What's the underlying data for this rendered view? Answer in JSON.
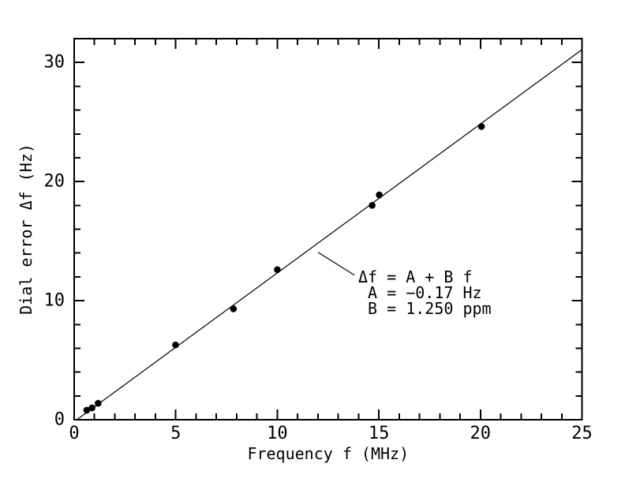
{
  "figure": {
    "background": "#ffffff",
    "foreground": "#000000"
  },
  "chart_data": {
    "type": "scatter",
    "title": "",
    "xlabel": "Frequency f (MHz)",
    "ylabel": "Dial error Δf (Hz)",
    "xlim": [
      0,
      25
    ],
    "ylim": [
      0,
      32
    ],
    "x_major_ticks": [
      0,
      5,
      10,
      15,
      20,
      25
    ],
    "x_minor_step": 1,
    "y_major_ticks": [
      0,
      10,
      20,
      30
    ],
    "y_minor_step": 2,
    "grid": false,
    "legend": null,
    "points": [
      [
        0.62,
        0.8
      ],
      [
        0.88,
        1.0
      ],
      [
        1.18,
        1.38
      ],
      [
        4.99,
        6.28
      ],
      [
        7.84,
        9.31
      ],
      [
        10.0,
        12.6
      ],
      [
        14.67,
        18.0
      ],
      [
        15.02,
        18.88
      ],
      [
        20.05,
        24.62
      ]
    ],
    "fit": {
      "A": -0.17,
      "B": 1.25
    },
    "annotation": {
      "lines": [
        "Δf = A + B f",
        " A = −0.17 Hz",
        " B = 1.250 ppm"
      ]
    },
    "callout": {
      "x1": 12.0,
      "y1": 14.06,
      "x2": 13.8,
      "y2": 12.14
    }
  }
}
